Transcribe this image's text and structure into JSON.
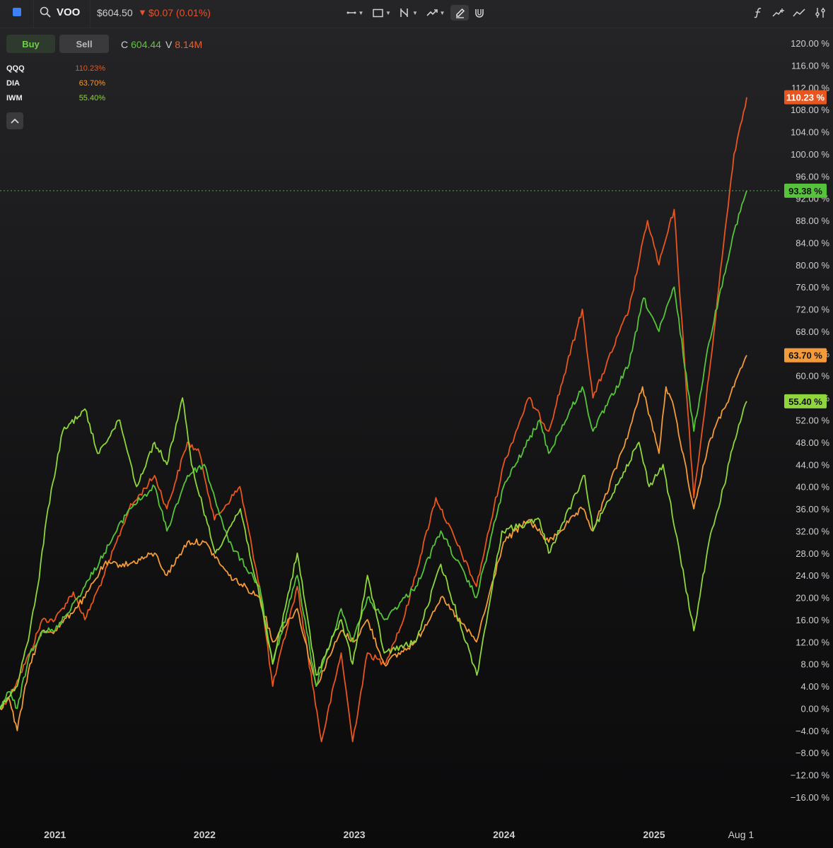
{
  "header": {
    "ticker": "VOO",
    "price": "$604.50",
    "change_arrow": "▼",
    "change": "$0.07 (0.01%)",
    "icons": [
      "symbol-swatch",
      "search-icon",
      "horizontal-line-tool-icon",
      "rectangle-tool-icon",
      "fib-tool-icon",
      "trend-tool-icon",
      "pen-tool-icon",
      "magnet-icon",
      "function-icon",
      "add-indicator-icon",
      "compare-icon",
      "settings-icon"
    ]
  },
  "trade": {
    "buy_label": "Buy",
    "sell_label": "Sell"
  },
  "ohlc": {
    "close_key": "C",
    "close_value": "604.44",
    "volume_key": "V",
    "volume_value": "8.14M"
  },
  "legend": [
    {
      "name": "QQQ",
      "value": "110.23%",
      "color": "#e8561f"
    },
    {
      "name": "DIA",
      "value": "63.70%",
      "color": "#f39a3a"
    },
    {
      "name": "IWM",
      "value": "55.40%",
      "color": "#8fd63d"
    }
  ],
  "chart_data": {
    "type": "line",
    "x_ticks": [
      "2021",
      "2022",
      "2023",
      "2024",
      "2025",
      "Aug 1"
    ],
    "y_ticks": [
      "120.00 %",
      "116.00 %",
      "112.00 %",
      "108.00 %",
      "104.00 %",
      "100.00 %",
      "96.00 %",
      "92.00 %",
      "88.00 %",
      "84.00 %",
      "80.00 %",
      "76.00 %",
      "72.00 %",
      "68.00 %",
      "64.00 %",
      "60.00 %",
      "56.00 %",
      "52.00 %",
      "48.00 %",
      "44.00 %",
      "40.00 %",
      "36.00 %",
      "32.00 %",
      "28.00 %",
      "24.00 %",
      "20.00 %",
      "16.00 %",
      "12.00 %",
      "8.00 %",
      "4.00 %",
      "0.00 %",
      "−4.00 %",
      "−8.00 %",
      "−12.00 %",
      "−16.00 %"
    ],
    "ylim": [
      -16,
      120
    ],
    "y_unit": "%",
    "current_line_value": 93.38,
    "series": [
      {
        "name": "QQQ",
        "color": "#e8561f",
        "last_label": "110.23 %",
        "points": [
          [
            "2020-08-20",
            0
          ],
          [
            "2020-09-10",
            2
          ],
          [
            "2020-10-01",
            5
          ],
          [
            "2020-11-01",
            10
          ],
          [
            "2020-12-01",
            16
          ],
          [
            "2021-01-01",
            16
          ],
          [
            "2021-02-15",
            21
          ],
          [
            "2021-03-15",
            16
          ],
          [
            "2021-05-01",
            24
          ],
          [
            "2021-07-01",
            36
          ],
          [
            "2021-09-01",
            42
          ],
          [
            "2021-10-01",
            36
          ],
          [
            "2021-11-20",
            48
          ],
          [
            "2021-12-20",
            46
          ],
          [
            "2022-01-25",
            34
          ],
          [
            "2022-03-28",
            40
          ],
          [
            "2022-05-15",
            22
          ],
          [
            "2022-06-16",
            4
          ],
          [
            "2022-08-15",
            22
          ],
          [
            "2022-10-13",
            -6
          ],
          [
            "2022-11-30",
            10
          ],
          [
            "2022-12-28",
            -6
          ],
          [
            "2023-02-02",
            10
          ],
          [
            "2023-03-15",
            8
          ],
          [
            "2023-05-01",
            16
          ],
          [
            "2023-07-19",
            38
          ],
          [
            "2023-10-26",
            22
          ],
          [
            "2023-12-31",
            44
          ],
          [
            "2024-03-01",
            56
          ],
          [
            "2024-04-19",
            50
          ],
          [
            "2024-07-10",
            72
          ],
          [
            "2024-08-05",
            56
          ],
          [
            "2024-11-01",
            72
          ],
          [
            "2024-12-16",
            88
          ],
          [
            "2025-01-13",
            80
          ],
          [
            "2025-02-19",
            90
          ],
          [
            "2025-04-08",
            38
          ],
          [
            "2025-05-15",
            60
          ],
          [
            "2025-06-20",
            84
          ],
          [
            "2025-07-15",
            100
          ],
          [
            "2025-08-15",
            110.23
          ]
        ]
      },
      {
        "name": "DIA",
        "color": "#f39a3a",
        "last_label": "63.70 %",
        "points": [
          [
            "2020-08-20",
            0
          ],
          [
            "2020-09-10",
            2
          ],
          [
            "2020-10-01",
            -4
          ],
          [
            "2020-11-01",
            8
          ],
          [
            "2020-12-01",
            14
          ],
          [
            "2021-01-01",
            14
          ],
          [
            "2021-03-15",
            20
          ],
          [
            "2021-05-01",
            26
          ],
          [
            "2021-07-01",
            26
          ],
          [
            "2021-09-01",
            28
          ],
          [
            "2021-10-01",
            24
          ],
          [
            "2021-11-20",
            30
          ],
          [
            "2021-12-31",
            30
          ],
          [
            "2022-03-01",
            24
          ],
          [
            "2022-05-15",
            20
          ],
          [
            "2022-06-16",
            12
          ],
          [
            "2022-08-15",
            18
          ],
          [
            "2022-09-30",
            4
          ],
          [
            "2022-11-30",
            14
          ],
          [
            "2022-12-31",
            12
          ],
          [
            "2023-02-02",
            16
          ],
          [
            "2023-03-15",
            8
          ],
          [
            "2023-05-31",
            12
          ],
          [
            "2023-07-31",
            20
          ],
          [
            "2023-10-26",
            12
          ],
          [
            "2023-12-31",
            30
          ],
          [
            "2024-03-01",
            34
          ],
          [
            "2024-04-19",
            30
          ],
          [
            "2024-07-10",
            36
          ],
          [
            "2024-08-05",
            32
          ],
          [
            "2024-11-01",
            50
          ],
          [
            "2024-12-04",
            58
          ],
          [
            "2025-01-13",
            46
          ],
          [
            "2025-01-30",
            58
          ],
          [
            "2025-02-19",
            54
          ],
          [
            "2025-04-08",
            36
          ],
          [
            "2025-05-15",
            48
          ],
          [
            "2025-06-20",
            54
          ],
          [
            "2025-07-15",
            58
          ],
          [
            "2025-08-15",
            63.7
          ]
        ]
      },
      {
        "name": "VOO",
        "color": "#55c43a",
        "last_label": "93.38 %",
        "points": [
          [
            "2020-08-20",
            0
          ],
          [
            "2020-09-10",
            3
          ],
          [
            "2020-10-01",
            0
          ],
          [
            "2020-11-01",
            10
          ],
          [
            "2020-12-01",
            14
          ],
          [
            "2021-01-01",
            14
          ],
          [
            "2021-03-15",
            22
          ],
          [
            "2021-05-01",
            28
          ],
          [
            "2021-07-01",
            36
          ],
          [
            "2021-09-01",
            40
          ],
          [
            "2021-10-01",
            32
          ],
          [
            "2021-11-20",
            42
          ],
          [
            "2021-12-31",
            44
          ],
          [
            "2022-03-01",
            30
          ],
          [
            "2022-05-15",
            22
          ],
          [
            "2022-06-16",
            8
          ],
          [
            "2022-08-15",
            24
          ],
          [
            "2022-09-30",
            4
          ],
          [
            "2022-11-30",
            18
          ],
          [
            "2022-12-28",
            12
          ],
          [
            "2023-02-02",
            20
          ],
          [
            "2023-03-15",
            16
          ],
          [
            "2023-05-31",
            22
          ],
          [
            "2023-07-31",
            32
          ],
          [
            "2023-10-26",
            20
          ],
          [
            "2023-12-31",
            40
          ],
          [
            "2024-03-28",
            52
          ],
          [
            "2024-04-19",
            46
          ],
          [
            "2024-07-10",
            58
          ],
          [
            "2024-08-05",
            50
          ],
          [
            "2024-11-01",
            62
          ],
          [
            "2024-12-06",
            74
          ],
          [
            "2025-01-13",
            68
          ],
          [
            "2025-02-19",
            76
          ],
          [
            "2025-04-08",
            50
          ],
          [
            "2025-05-15",
            66
          ],
          [
            "2025-06-20",
            78
          ],
          [
            "2025-07-15",
            86
          ],
          [
            "2025-08-15",
            93.38
          ]
        ]
      },
      {
        "name": "IWM",
        "color": "#8fd63d",
        "last_label": "55.40 %",
        "points": [
          [
            "2020-08-20",
            0
          ],
          [
            "2020-09-10",
            2
          ],
          [
            "2020-10-01",
            4
          ],
          [
            "2020-11-01",
            14
          ],
          [
            "2020-11-20",
            22
          ],
          [
            "2020-12-15",
            36
          ],
          [
            "2021-01-20",
            50
          ],
          [
            "2021-03-15",
            54
          ],
          [
            "2021-04-15",
            46
          ],
          [
            "2021-06-08",
            52
          ],
          [
            "2021-07-19",
            40
          ],
          [
            "2021-09-01",
            48
          ],
          [
            "2021-10-01",
            44
          ],
          [
            "2021-11-08",
            56
          ],
          [
            "2021-11-30",
            44
          ],
          [
            "2022-01-27",
            28
          ],
          [
            "2022-03-29",
            36
          ],
          [
            "2022-05-15",
            20
          ],
          [
            "2022-06-16",
            8
          ],
          [
            "2022-08-15",
            28
          ],
          [
            "2022-09-30",
            6
          ],
          [
            "2022-11-30",
            16
          ],
          [
            "2022-12-28",
            8
          ],
          [
            "2023-02-02",
            24
          ],
          [
            "2023-03-15",
            10
          ],
          [
            "2023-05-31",
            12
          ],
          [
            "2023-07-31",
            26
          ],
          [
            "2023-10-27",
            6
          ],
          [
            "2023-12-27",
            32
          ],
          [
            "2024-03-28",
            34
          ],
          [
            "2024-04-19",
            28
          ],
          [
            "2024-07-16",
            42
          ],
          [
            "2024-08-05",
            32
          ],
          [
            "2024-11-25",
            48
          ],
          [
            "2024-12-20",
            40
          ],
          [
            "2025-01-23",
            44
          ],
          [
            "2025-04-08",
            14
          ],
          [
            "2025-05-15",
            30
          ],
          [
            "2025-06-20",
            40
          ],
          [
            "2025-07-15",
            48
          ],
          [
            "2025-08-15",
            55.4
          ]
        ]
      }
    ]
  }
}
